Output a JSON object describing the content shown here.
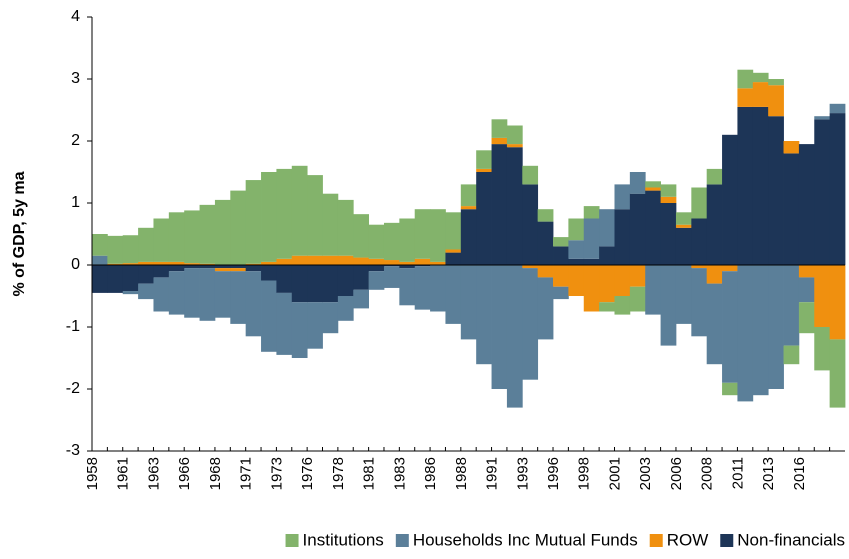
{
  "chart_data": {
    "type": "stacked_bar",
    "y_label": "% of GDP, 5y ma",
    "categories": [
      "1958",
      null,
      "1961",
      null,
      "1963",
      null,
      "1966",
      null,
      "1968",
      null,
      "1971",
      null,
      "1973",
      null,
      "1976",
      null,
      "1978",
      null,
      "1981",
      null,
      "1983",
      null,
      "1986",
      null,
      "1988",
      null,
      "1991",
      null,
      "1993",
      null,
      "1996",
      null,
      "1998",
      null,
      "2001",
      null,
      "2003",
      null,
      "2006",
      null,
      "2008",
      null,
      "2011",
      null,
      "2013",
      null,
      "2016",
      null,
      null
    ],
    "series": [
      {
        "name": "Institutions",
        "color": "#83b36b",
        "values": [
          0.35,
          0.45,
          0.45,
          0.55,
          0.7,
          0.8,
          0.85,
          0.95,
          1.05,
          1.2,
          1.35,
          1.45,
          1.45,
          1.45,
          1.3,
          1.0,
          0.9,
          0.7,
          0.55,
          0.6,
          0.7,
          0.8,
          0.85,
          0.6,
          0.35,
          0.3,
          0.3,
          0.3,
          0.3,
          0.2,
          0.15,
          0.35,
          0.2,
          -0.15,
          -0.3,
          -0.4,
          0.1,
          0.2,
          0.2,
          0.5,
          0.25,
          -0.2,
          0.3,
          0.15,
          0.1,
          -0.3,
          -0.5,
          -0.7,
          -1.1
        ]
      },
      {
        "name": "Households Inc Mutual Funds",
        "color": "#5b7f99",
        "values": [
          0.15,
          0,
          -0.05,
          -0.25,
          -0.55,
          -0.7,
          -0.8,
          -0.85,
          -0.75,
          -0.85,
          -1.05,
          -1.15,
          -1.0,
          -0.9,
          -0.75,
          -0.5,
          -0.4,
          -0.3,
          -0.3,
          -0.35,
          -0.6,
          -0.7,
          -0.75,
          -0.95,
          -1.2,
          -1.6,
          -2.0,
          -2.3,
          -1.8,
          -1.0,
          -0.2,
          0.3,
          0.65,
          0.6,
          0.4,
          0.35,
          -0.8,
          -1.3,
          -0.95,
          -1.1,
          -1.3,
          -1.8,
          -2.2,
          -2.1,
          -2.0,
          -1.3,
          -0.4,
          0.05,
          0.15
        ]
      },
      {
        "name": "ROW",
        "color": "#f0900f",
        "values": [
          0,
          0.02,
          0.03,
          0.05,
          0.05,
          0.05,
          0.03,
          0.02,
          -0.05,
          -0.05,
          0.02,
          0.05,
          0.1,
          0.15,
          0.15,
          0.15,
          0.15,
          0.12,
          0.1,
          0.08,
          0.05,
          0.1,
          0.05,
          0.05,
          0.05,
          0.05,
          0.1,
          0.05,
          -0.05,
          -0.2,
          -0.35,
          -0.5,
          -0.75,
          -0.6,
          -0.5,
          -0.35,
          0.05,
          0.1,
          0.05,
          -0.05,
          -0.3,
          -0.1,
          0.3,
          0.4,
          0.5,
          0.2,
          -0.2,
          -1.0,
          -1.2
        ]
      },
      {
        "name": "Non-financials",
        "color": "#1d3557",
        "values": [
          -0.45,
          -0.45,
          -0.42,
          -0.3,
          -0.2,
          -0.1,
          -0.05,
          -0.05,
          -0.05,
          -0.05,
          -0.1,
          -0.25,
          -0.45,
          -0.6,
          -0.6,
          -0.6,
          -0.5,
          -0.4,
          -0.1,
          -0.02,
          -0.05,
          -0.02,
          0,
          0.2,
          0.9,
          1.5,
          1.95,
          1.9,
          1.3,
          0.7,
          0.3,
          0.1,
          0.1,
          0.3,
          0.9,
          1.15,
          1.2,
          1.0,
          0.6,
          0.75,
          1.3,
          2.1,
          2.55,
          2.55,
          2.4,
          1.8,
          1.95,
          2.35,
          2.45
        ]
      }
    ],
    "ylim": [
      -3,
      4
    ],
    "yticks": [
      -3,
      -2,
      -1,
      0,
      1,
      2,
      3,
      4
    ]
  }
}
